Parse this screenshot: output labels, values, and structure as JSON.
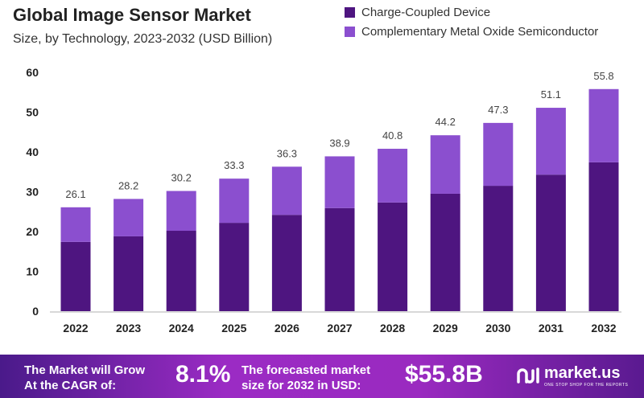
{
  "chart_data": {
    "type": "bar",
    "stacked": true,
    "title": "Global Image Sensor Market",
    "subtitle": "Size, by Technology, 2023-2032 (USD Billion)",
    "categories": [
      "2022",
      "2023",
      "2024",
      "2025",
      "2026",
      "2027",
      "2028",
      "2029",
      "2030",
      "2031",
      "2032"
    ],
    "series": [
      {
        "name": "Charge-Coupled Device",
        "color": "#4e1580",
        "values": [
          17.4,
          18.8,
          20.2,
          22.2,
          24.2,
          25.9,
          27.3,
          29.5,
          31.5,
          34.3,
          37.4
        ]
      },
      {
        "name": "Complementary Metal Oxide Semiconductor",
        "color": "#8b4fcf",
        "values": [
          8.7,
          9.4,
          10.0,
          11.1,
          12.1,
          13.0,
          13.5,
          14.7,
          15.8,
          16.8,
          18.4
        ]
      }
    ],
    "totals": [
      26.1,
      28.2,
      30.2,
      33.3,
      36.3,
      38.9,
      40.8,
      44.2,
      47.3,
      51.1,
      55.8
    ],
    "total_labels": [
      "26.1",
      "28.2",
      "30.2",
      "33.3",
      "36.3",
      "38.9",
      "40.8",
      "44.2",
      "47.3",
      "51.1",
      "55.8"
    ],
    "yticks": [
      "0",
      "10",
      "20",
      "30",
      "40",
      "50",
      "60"
    ],
    "ylim": [
      0,
      60
    ],
    "grid": false,
    "legend": "top-right"
  },
  "banner": {
    "cagr_text_1": "The Market will Grow",
    "cagr_text_2": "At the CAGR of:",
    "cagr_value": "8.1%",
    "forecast_text_1": "The forecasted market",
    "forecast_text_2": "size for 2032 in USD:",
    "forecast_value": "$55.8B",
    "logo_name": "market.us",
    "logo_tagline": "ONE STOP SHOP FOR THE REPORTS"
  }
}
